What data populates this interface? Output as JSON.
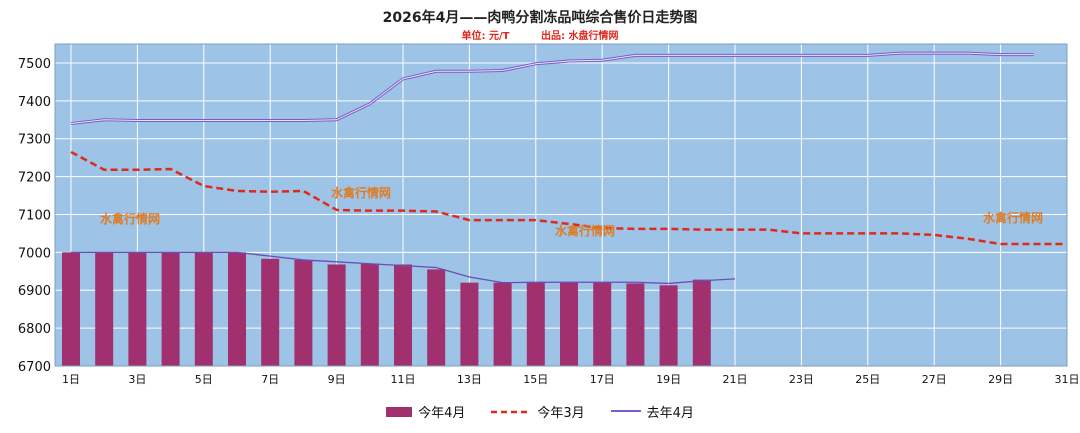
{
  "chart_data": {
    "type": "bar+line",
    "title": "2026年4月——肉鸭分割冻品吨综合售价日走势图",
    "unit_label": "单位: 元/T",
    "source_label": "出品: 水盘行情网",
    "watermark": "水禽行情网",
    "ylim": [
      6700,
      7550
    ],
    "yticks": [
      6700,
      6800,
      6900,
      7000,
      7100,
      7200,
      7300,
      7400,
      7500
    ],
    "x_labels": [
      "1日",
      "3日",
      "5日",
      "7日",
      "9日",
      "11日",
      "13日",
      "15日",
      "17日",
      "19日",
      "21日",
      "23日",
      "25日",
      "27日",
      "29日",
      "31日"
    ],
    "series": [
      {
        "name": "今年4月",
        "kind": "bar",
        "color": "#a0306e",
        "values": [
          7000,
          7000,
          7000,
          7000,
          7000,
          7000,
          6983,
          6980,
          6968,
          6970,
          6968,
          6955,
          6920,
          6920,
          6922,
          6922,
          6922,
          6918,
          6913,
          6928
        ]
      },
      {
        "name": "今年3月",
        "kind": "dashed-line",
        "color": "#e0281d",
        "values": [
          7265,
          7218,
          7218,
          7220,
          7175,
          7162,
          7160,
          7162,
          7112,
          7110,
          7110,
          7108,
          7085,
          7085,
          7085,
          7075,
          7064,
          7062,
          7062,
          7060,
          7060,
          7060,
          7050,
          7050,
          7050,
          7050,
          7046,
          7036,
          7022,
          7022,
          7022
        ]
      },
      {
        "name": "去年4月",
        "kind": "line",
        "color": "#7a5cc8",
        "values": [
          7340,
          7350,
          7348,
          7348,
          7348,
          7348,
          7348,
          7348,
          7350,
          7392,
          7458,
          7478,
          7478,
          7480,
          7498,
          7505,
          7507,
          7520,
          7520,
          7520,
          7520,
          7520,
          7520,
          7520,
          7520,
          7526,
          7526,
          7526,
          7522,
          7522
        ]
      }
    ],
    "bar_trend_values": [
      7000,
      7000,
      7000,
      7000,
      7000,
      7000,
      6990,
      6980,
      6975,
      6970,
      6965,
      6960,
      6935,
      6920,
      6921,
      6921,
      6921,
      6921,
      6918,
      6925,
      6930
    ]
  }
}
